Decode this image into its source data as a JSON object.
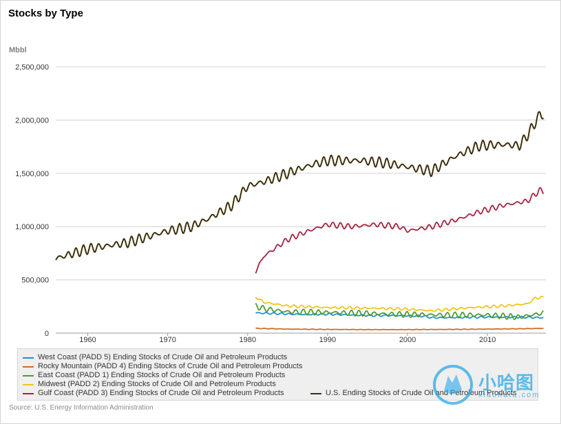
{
  "chart_data": {
    "type": "line",
    "title": "Stocks by Type",
    "ylabel": "Mbbl",
    "xlabel": "",
    "source": "Source: U.S. Energy Information Administration",
    "ylim": [
      0,
      2500000
    ],
    "xlim": [
      1956,
      2017.3
    ],
    "y_ticks": [
      0,
      500000,
      1000000,
      1500000,
      2000000,
      2500000
    ],
    "y_tick_labels": [
      "0",
      "500,000",
      "1,000,000",
      "1,500,000",
      "2,000,000",
      "2,500,000"
    ],
    "x_ticks": [
      1960,
      1970,
      1980,
      1990,
      2000,
      2010
    ],
    "x_tick_labels": [
      "1960",
      "1970",
      "1980",
      "1990",
      "2000",
      "2010"
    ],
    "grid": true,
    "legend_position": "bottom",
    "series": [
      {
        "name": "West Coast (PADD 5) Ending Stocks of Crude Oil and Petroleum Products",
        "color": "#1f8fd6",
        "x": [
          1981,
          1983,
          1985,
          1987,
          1990,
          1993,
          1996,
          1999,
          2002,
          2003,
          2005,
          2008,
          2011,
          2014,
          2017
        ],
        "y": [
          190000,
          185000,
          180000,
          175000,
          178000,
          170000,
          165000,
          165000,
          160000,
          145000,
          145000,
          150000,
          150000,
          150000,
          145000
        ],
        "amplitude": 7000
      },
      {
        "name": "Rocky Mountain (PADD 4) Ending Stocks of Crude Oil and Petroleum Products",
        "color": "#d36b22",
        "x": [
          1981,
          1985,
          1990,
          1995,
          2000,
          2005,
          2010,
          2015,
          2017
        ],
        "y": [
          45000,
          38000,
          35000,
          33000,
          33000,
          35000,
          38000,
          42000,
          45000
        ],
        "amplitude": 2000
      },
      {
        "name": "East Coast (PADD 1) Ending Stocks of Crude Oil and Petroleum Products",
        "color": "#4e9a2e",
        "x": [
          1981,
          1982,
          1985,
          1990,
          1995,
          2000,
          2005,
          2010,
          2014,
          2017
        ],
        "y": [
          255000,
          230000,
          200000,
          195000,
          185000,
          175000,
          170000,
          170000,
          150000,
          190000
        ],
        "amplitude": 22000
      },
      {
        "name": "Midwest (PADD 2) Ending Stocks of Crude Oil and Petroleum Products",
        "color": "#f0c419",
        "x": [
          1981,
          1982,
          1985,
          1990,
          1995,
          2000,
          2003,
          2008,
          2012,
          2015,
          2016,
          2017
        ],
        "y": [
          340000,
          290000,
          255000,
          240000,
          235000,
          225000,
          210000,
          240000,
          255000,
          275000,
          330000,
          335000
        ],
        "amplitude": 10000
      },
      {
        "name": "Gulf Coast (PADD 3) Ending Stocks of Crude Oil and Petroleum Products",
        "color": "#a3223d",
        "x": [
          1981,
          1982,
          1985,
          1988,
          1990,
          1993,
          1996,
          1999,
          2000,
          2003,
          2006,
          2009,
          2012,
          2015,
          2016.5,
          2017
        ],
        "y": [
          580000,
          720000,
          880000,
          970000,
          1020000,
          1000000,
          1020000,
          1000000,
          960000,
          1000000,
          1060000,
          1140000,
          1200000,
          1240000,
          1340000,
          1330000
        ],
        "amplitude": 22000
      },
      {
        "name": "U.S. Ending Stocks of Crude Oil and Petroleum Products",
        "color": "#3b2e0a",
        "x": [
          1956,
          1960,
          1965,
          1970,
          1973,
          1975,
          1978,
          1980,
          1982,
          1985,
          1988,
          1990,
          1994,
          1997,
          2000,
          2003,
          2006,
          2009,
          2012,
          2014,
          2015,
          2016,
          2016.6,
          2017
        ],
        "y": [
          700000,
          790000,
          850000,
          960000,
          1000000,
          1070000,
          1200000,
          1380000,
          1420000,
          1500000,
          1580000,
          1620000,
          1620000,
          1600000,
          1560000,
          1520000,
          1660000,
          1760000,
          1770000,
          1760000,
          1860000,
          1980000,
          2060000,
          2040000
        ],
        "amplitude": 40000
      }
    ]
  },
  "watermark": {
    "text": "小哈图",
    "sub": "xiaohatu.com"
  }
}
